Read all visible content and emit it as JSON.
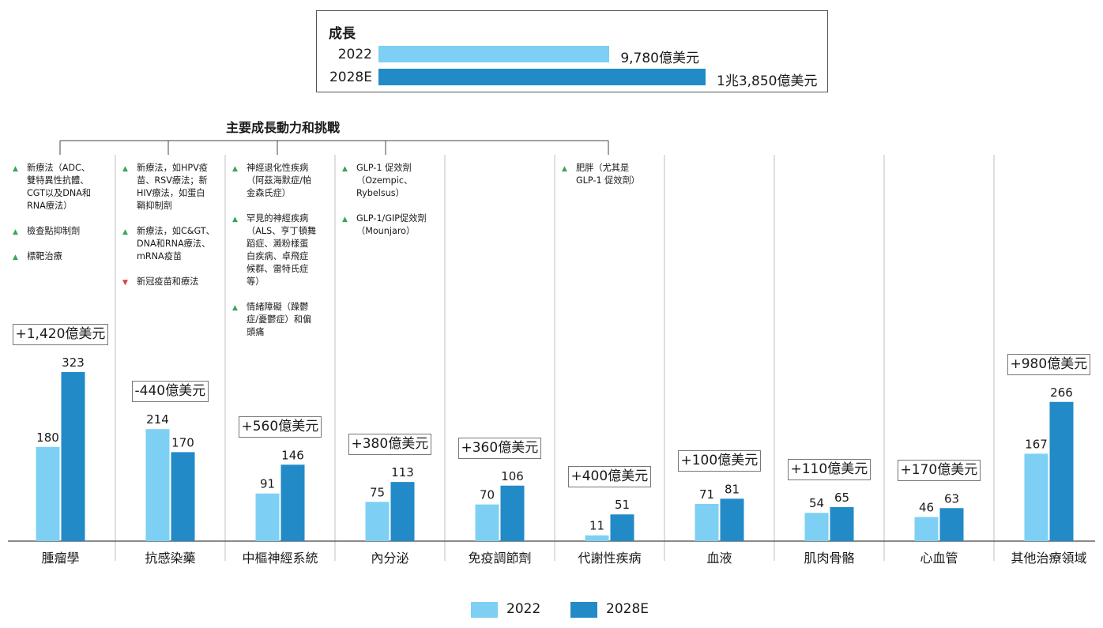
{
  "growth": {
    "title": "成長",
    "rows": [
      {
        "label": "2022",
        "value": 9780,
        "value_label": "9,780億美元",
        "color": "#7dd0f3"
      },
      {
        "label": "2028E",
        "value": 13850,
        "value_label": "1兆3,850億美元",
        "color": "#238ac8"
      }
    ]
  },
  "drivers_title": "主要成長動力和挑戰",
  "notes": [
    [
      {
        "dir": "up",
        "text": "新療法（ADC、\n雙特異性抗體、\nCGT以及DNA和\nRNA療法）"
      },
      {
        "dir": "up",
        "text": "檢查點抑制劑"
      },
      {
        "dir": "up",
        "text": "標靶治療"
      }
    ],
    [
      {
        "dir": "up",
        "text": "新療法，如HPV疫\n苗、RSV療法；新\nHIV療法，如蛋白\n鞘抑制劑"
      },
      {
        "dir": "up",
        "text": "新療法，如C&GT、\nDNA和RNA療法、\nmRNA疫苗"
      },
      {
        "dir": "down",
        "text": "新冠疫苗和療法"
      }
    ],
    [
      {
        "dir": "up",
        "text": "神經退化性疾病\n（阿茲海默症/帕\n金森氏症）"
      },
      {
        "dir": "up",
        "text": "罕見的神經疾病\n（ALS、亨丁頓舞\n蹈症、澱粉樣蛋\n白疾病、卓飛症\n候群、雷特氏症\n等）"
      },
      {
        "dir": "up",
        "text": "情緒障礙（躁鬱\n症/憂鬱症）和偏\n頭痛"
      }
    ],
    [
      {
        "dir": "up",
        "text": "GLP-1 促效劑\n（Ozempic、\nRybelsus）"
      },
      {
        "dir": "up",
        "text": "GLP-1/GIP促效劑\n（Mounjaro）"
      }
    ],
    [],
    [
      {
        "dir": "up",
        "text": "肥胖（尤其是\nGLP-1 促效劑）"
      }
    ],
    [],
    [],
    [],
    []
  ],
  "chart_data": {
    "type": "bar",
    "categories": [
      "腫瘤學",
      "抗感染藥",
      "中樞神經系統",
      "內分泌",
      "免疫調節劑",
      "代謝性疾病",
      "血液",
      "肌肉骨骼",
      "心血管",
      "其他治療領域"
    ],
    "series": [
      {
        "name": "2022",
        "values": [
          180,
          214,
          91,
          75,
          70,
          11,
          71,
          54,
          46,
          167
        ],
        "color": "#7dd0f3"
      },
      {
        "name": "2028E",
        "values": [
          323,
          170,
          146,
          113,
          106,
          51,
          81,
          65,
          63,
          266
        ],
        "color": "#238ac8"
      }
    ],
    "value_labels": [
      [
        "180",
        "214",
        "91",
        "75",
        "70",
        "11",
        "71",
        "54",
        "46",
        "167"
      ],
      [
        "323",
        "170",
        "146",
        "113",
        "106",
        "51",
        "81",
        "65",
        "63",
        "266"
      ]
    ],
    "delta_labels": [
      "+1,420億美元",
      "-440億美元",
      "+560億美元",
      "+380億美元",
      "+360億美元",
      "+400億美元",
      "+100億美元",
      "+110億美元",
      "+170億美元",
      "+980億美元"
    ],
    "ylim": [
      0,
      360
    ],
    "legend_position": "bottom"
  }
}
